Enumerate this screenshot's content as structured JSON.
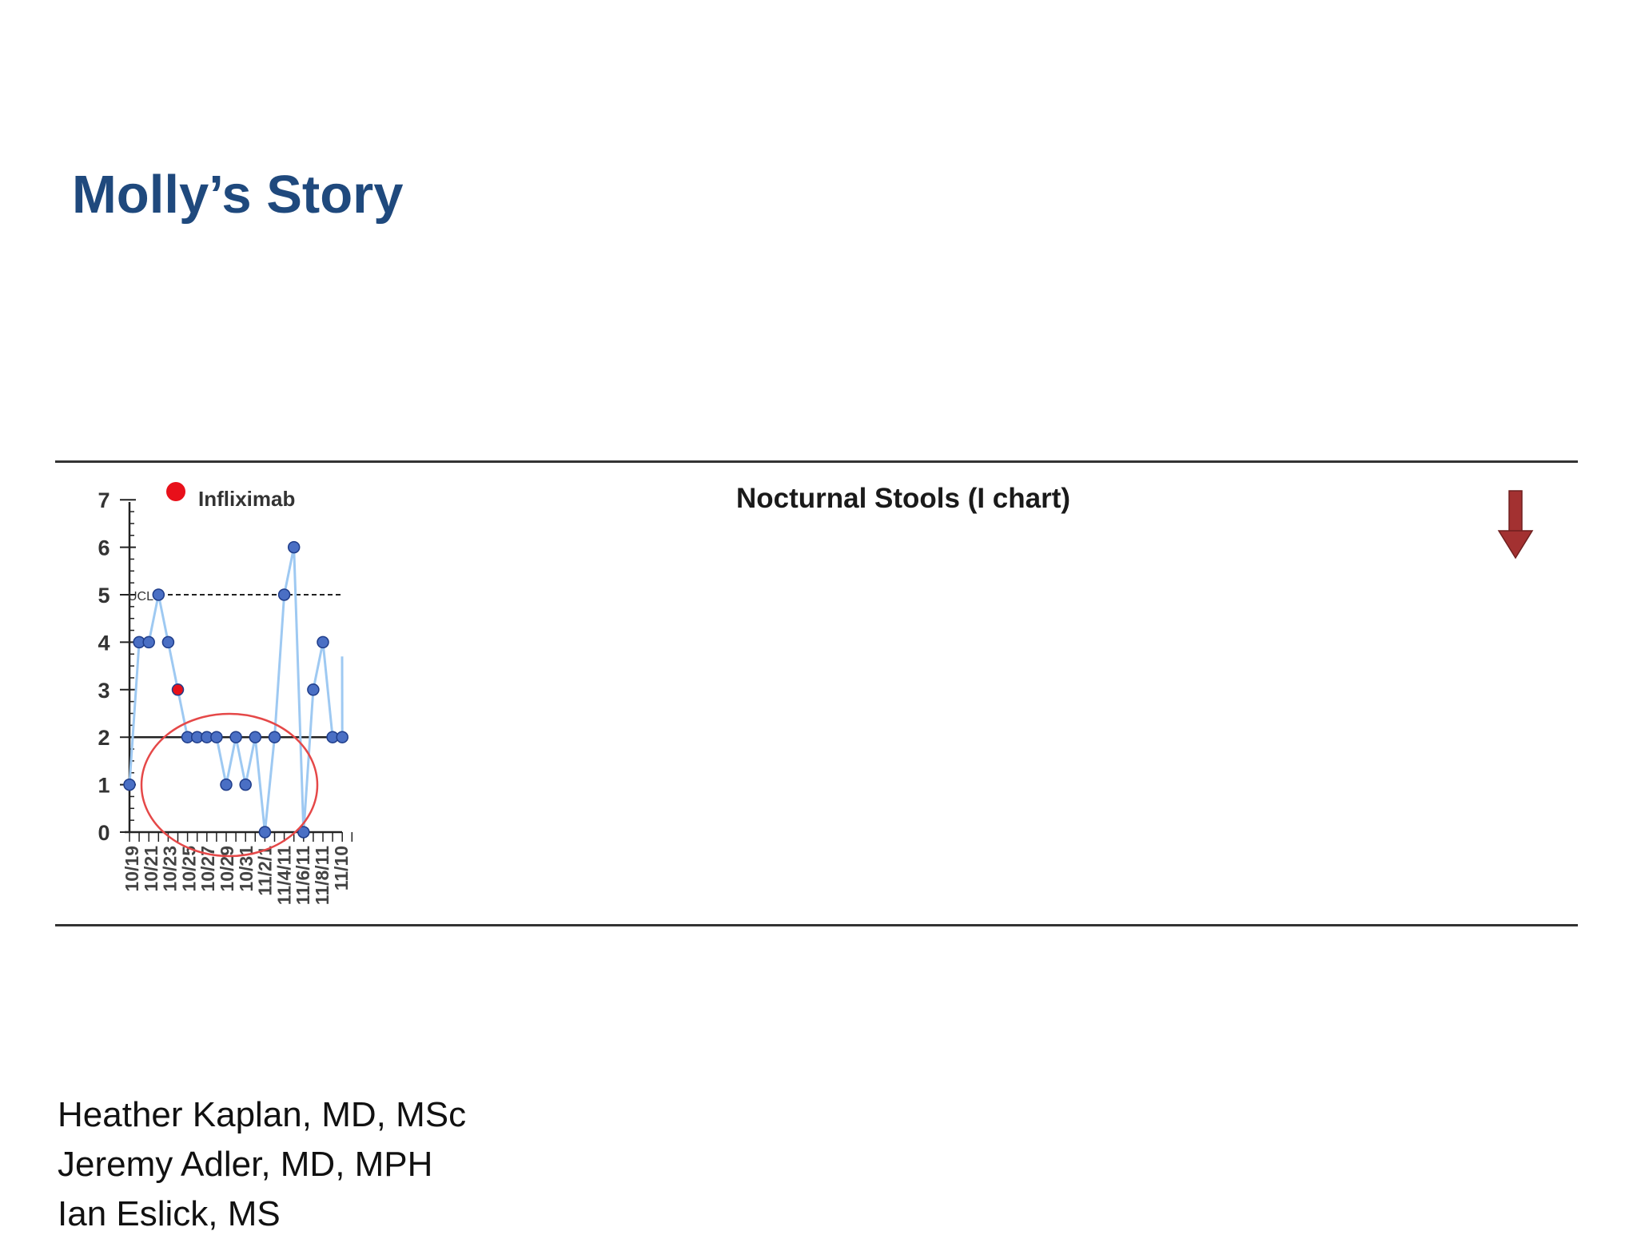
{
  "slide": {
    "title": "Molly’s Story",
    "authors": [
      "Heather Kaplan, MD, MSc",
      "Jeremy Adler, MD, MPH",
      "Ian Eslick, MS"
    ]
  },
  "chart_data": {
    "type": "line",
    "title": "Nocturnal Stools (I chart)",
    "xlabel": "",
    "ylabel": "",
    "ylim": [
      0,
      7
    ],
    "yticks": [
      "0",
      "1",
      "2",
      "3",
      "4",
      "5",
      "6",
      "7"
    ],
    "xticks": [
      "10/19",
      "10/21",
      "10/23",
      "10/25",
      "10/27",
      "10/29",
      "10/31",
      "11/2/1",
      "11/4/11",
      "11/6/11",
      "11/8/11",
      "11/10"
    ],
    "series": [
      {
        "values": [
          1,
          4,
          4,
          5,
          4,
          3,
          2,
          2,
          2,
          2,
          1,
          2,
          1,
          2,
          0,
          2,
          5,
          6,
          0,
          3,
          4,
          2,
          2
        ]
      }
    ],
    "highlight_index": 5,
    "legend": {
      "label": "Infliximab",
      "placement": "top-left"
    },
    "ucl": {
      "label": "UCL",
      "value": 5
    },
    "center_line": 2,
    "grid": false,
    "colors": {
      "line": "#9ec9f2",
      "point": "#4a6fc4",
      "point_stroke": "#1f3d8a",
      "highlight": "#e8101a",
      "ucl": "#222222",
      "circle": "#e54848",
      "arrow": "#a33131",
      "title": "#1f497d"
    },
    "annotations": [
      "red-circle-around-low-values",
      "down-arrow"
    ]
  }
}
